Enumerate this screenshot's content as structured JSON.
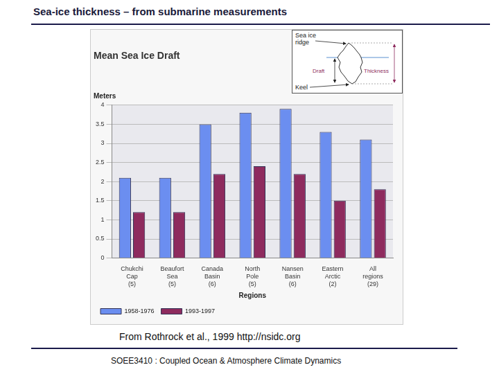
{
  "slide": {
    "title": "Sea-ice thickness – from submarine measurements",
    "caption": "From Rothrock et al., 1999 http://nsidc.org",
    "footer": "SOEE3410 : Coupled Ocean & Atmosphere Climate Dynamics"
  },
  "inset": {
    "ridge_label": [
      "Sea ice",
      "ridge"
    ],
    "draft_label": "Draft",
    "thickness_label": "Thickness",
    "keel_label": "Keel"
  },
  "chart_data": {
    "type": "bar",
    "title": "Mean Sea Ice Draft",
    "y_label": "Meters",
    "x_label": "Regions",
    "categories": [
      [
        "Chukchi",
        "Cap",
        "(5)"
      ],
      [
        "Beaufort",
        "Sea",
        "(5)"
      ],
      [
        "Canada",
        "Basin",
        "(6)"
      ],
      [
        "North",
        "Pole",
        "(5)"
      ],
      [
        "Nansen",
        "Basin",
        "(6)"
      ],
      [
        "Eastern",
        "Arctic",
        "(2)"
      ],
      [
        "All",
        "regions",
        "(29)"
      ]
    ],
    "series": [
      {
        "name": "1958-1976",
        "color": "#6b8ef0",
        "values": [
          2.1,
          2.1,
          3.5,
          3.8,
          3.9,
          3.3,
          3.1
        ]
      },
      {
        "name": "1993-1997",
        "color": "#8e2b5e",
        "values": [
          1.2,
          1.2,
          2.2,
          2.4,
          2.2,
          1.5,
          1.8
        ]
      }
    ],
    "ylim": [
      0,
      4
    ],
    "yticks": [
      0,
      0.5,
      1,
      1.5,
      2,
      2.5,
      3,
      3.5,
      4
    ],
    "grid": true,
    "legend": "bottom"
  }
}
